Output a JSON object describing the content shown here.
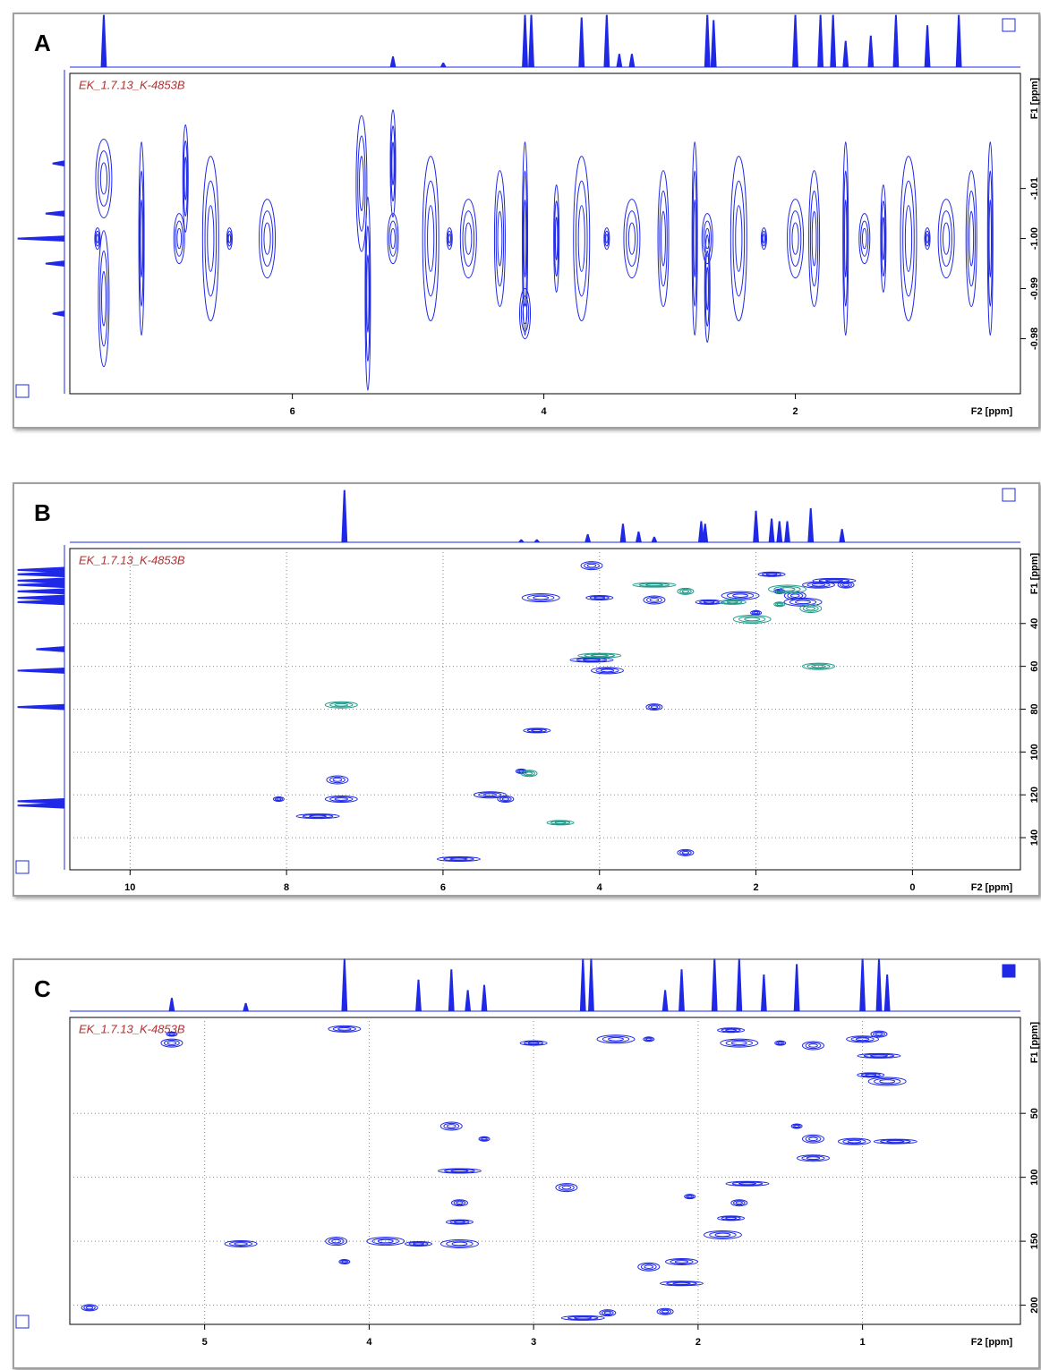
{
  "chart_data": [
    {
      "type": "scatter",
      "panel": "A",
      "dataset": "EK_1.7.13_K-4853B",
      "x_label": "F2 [ppm]",
      "y_label": "F1 [ppm]",
      "xlim": [
        7.77,
        0.21
      ],
      "xticks": [
        6,
        4,
        2
      ],
      "ylim": [
        -1.033,
        -0.969
      ],
      "yticks": [
        -1.01,
        {
          "value": -1.0,
          "label": "-1.00"
        },
        -0.99,
        -0.98
      ],
      "grid": false,
      "series": [
        {
          "color": "#1e28e6",
          "x": [
            7.55,
            7.5,
            7.5,
            7.2,
            6.9,
            6.85,
            6.65,
            6.5,
            6.2,
            5.45,
            5.4,
            5.2,
            5.2,
            4.9,
            4.75,
            4.6,
            4.35,
            4.15,
            4.15,
            3.9,
            3.7,
            3.5,
            3.3,
            3.05,
            2.8,
            2.7,
            2.7,
            2.45,
            2.25,
            2.0,
            1.85,
            1.6,
            1.45,
            1.3,
            1.1,
            0.95,
            0.8,
            0.6,
            0.45
          ],
          "values": [
            -1.0,
            -1.012,
            -0.988,
            -1.0,
            -1.0,
            -1.012,
            -1.0,
            -1.0,
            -1.0,
            -1.011,
            -0.989,
            -1.0,
            -1.015,
            -1.0,
            -1.0,
            -1.0,
            -1.0,
            -1.0,
            -0.985,
            -1.0,
            -1.0,
            -1.0,
            -1.0,
            -1.0,
            -1.0,
            -1.0,
            -0.99,
            -1.0,
            -1.0,
            -1.0,
            -1.0,
            -1.0,
            -1.0,
            -1.0,
            -1.0,
            -1.0,
            -1.0,
            -1.0,
            -1.0
          ]
        }
      ],
      "top_projection": {
        "x": [
          7.5,
          5.2,
          4.8,
          4.15,
          4.1,
          3.7,
          3.5,
          3.4,
          3.3,
          2.7,
          2.65,
          2.0,
          1.8,
          1.7,
          1.6,
          1.4,
          1.2,
          0.95,
          0.7
        ],
        "values": [
          100,
          20,
          8,
          100,
          100,
          95,
          100,
          25,
          25,
          100,
          90,
          100,
          100,
          100,
          50,
          60,
          100,
          80,
          100
        ]
      },
      "left_projection": {
        "y": [
          -1.015,
          -1.005,
          -1.0,
          -0.995,
          -0.985
        ],
        "values": [
          25,
          40,
          100,
          40,
          25
        ]
      }
    },
    {
      "type": "scatter",
      "panel": "B",
      "dataset": "EK_1.7.13_K-4853B",
      "x_label": "F2 [ppm]",
      "y_label": "F1 [ppm]",
      "xlim": [
        10.77,
        -1.38
      ],
      "xticks": [
        10,
        8,
        6,
        4,
        2,
        0
      ],
      "ylim": [
        5,
        155
      ],
      "yticks": [
        40,
        60,
        80,
        100,
        120,
        140
      ],
      "grid": true,
      "series": [
        {
          "color": "#1e28e6",
          "x": [
            8.1,
            7.35,
            7.3,
            7.6,
            5.2,
            4.8,
            4.75,
            5.0,
            3.3,
            3.9,
            4.1,
            3.3,
            2.6,
            2.2,
            1.7,
            1.5,
            1.2,
            1.0,
            0.85,
            1.8,
            1.4,
            2.0,
            4.1,
            5.4,
            5.8,
            2.9,
            4.0
          ],
          "values": [
            122,
            113,
            122,
            130,
            122,
            90,
            28,
            109,
            29,
            62,
            57,
            79,
            30,
            27,
            25,
            27,
            22,
            20,
            22,
            17,
            30,
            35,
            13,
            120,
            150,
            147,
            28
          ]
        },
        {
          "color": "#1f9a8a",
          "x": [
            7.3,
            3.3,
            2.9,
            2.3,
            2.05,
            1.7,
            1.3,
            1.2,
            4.0,
            4.9,
            4.5,
            1.6
          ],
          "values": [
            78,
            22,
            25,
            30,
            38,
            31,
            33,
            60,
            55,
            110,
            133,
            24
          ]
        }
      ],
      "top_projection": {
        "x": [
          7.26,
          5.0,
          4.8,
          4.15,
          3.7,
          3.5,
          3.3,
          2.7,
          2.65,
          2.0,
          1.8,
          1.7,
          1.6,
          1.3,
          0.9
        ],
        "values": [
          100,
          5,
          5,
          15,
          35,
          20,
          10,
          40,
          35,
          60,
          45,
          40,
          40,
          65,
          25
        ]
      },
      "left_projection": {
        "y": [
          15,
          17,
          20,
          22,
          25,
          28,
          30,
          52,
          62,
          79,
          123,
          125
        ],
        "values": [
          100,
          100,
          100,
          100,
          100,
          100,
          100,
          60,
          100,
          100,
          100,
          100
        ]
      }
    },
    {
      "type": "scatter",
      "panel": "C",
      "dataset": "EK_1.7.13_K-4853B",
      "x_label": "F2 [ppm]",
      "y_label": "F1 [ppm]",
      "xlim": [
        5.82,
        0.04
      ],
      "xticks": [
        5,
        4,
        3,
        2,
        1
      ],
      "ylim": [
        -25,
        215
      ],
      "yticks": [
        50,
        100,
        150,
        200
      ],
      "grid": true,
      "series": [
        {
          "color": "#1e28e6",
          "x": [
            5.2,
            5.2,
            4.15,
            2.7,
            2.55,
            3.7,
            3.9,
            4.15,
            4.2,
            4.78,
            3.45,
            3.45,
            3.45,
            3.45,
            2.3,
            2.3,
            2.1,
            2.1,
            2.2,
            1.8,
            1.75,
            1.5,
            1.3,
            1.0,
            0.9,
            0.9,
            0.95,
            0.85,
            1.4,
            1.3,
            1.3,
            1.7,
            1.75,
            1.8,
            1.85,
            2.05,
            2.8,
            1.05,
            0.8,
            5.7,
            3.0,
            2.5,
            3.3,
            3.5
          ],
          "values": [
            -12,
            -5,
            -16,
            210,
            206,
            152,
            150,
            166,
            150,
            152,
            95,
            120,
            135,
            152,
            -8,
            170,
            166,
            183,
            205,
            -15,
            -5,
            -5,
            -3,
            -8,
            5,
            -12,
            20,
            25,
            60,
            70,
            85,
            105,
            120,
            132,
            145,
            115,
            108,
            72,
            72,
            202,
            -5,
            -8,
            70,
            60
          ]
        }
      ],
      "top_projection": {
        "x": [
          5.2,
          4.75,
          4.15,
          3.7,
          3.5,
          3.4,
          3.3,
          2.7,
          2.65,
          2.2,
          2.1,
          1.9,
          1.75,
          1.6,
          1.4,
          1.0,
          0.9,
          0.85
        ],
        "values": [
          25,
          15,
          100,
          60,
          80,
          40,
          50,
          100,
          100,
          40,
          80,
          100,
          100,
          70,
          90,
          100,
          100,
          70
        ]
      }
    }
  ]
}
